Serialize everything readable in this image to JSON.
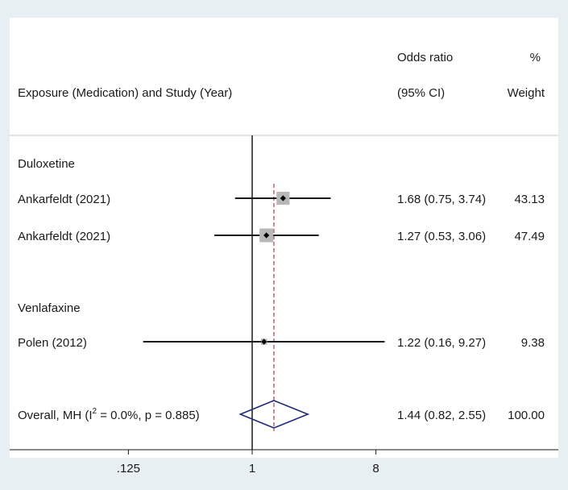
{
  "chart_data": {
    "type": "forest",
    "header": {
      "col1": "Exposure (Medication) and Study (Year)",
      "col2_line1": "Odds ratio",
      "col2_line2": "(95% CI)",
      "col3_line1": "%",
      "col3_line2": "Weight"
    },
    "groups": [
      {
        "name": "Duloxetine",
        "studies": [
          {
            "label": "Ankarfeldt (2021)",
            "or": 1.68,
            "lo": 0.75,
            "hi": 3.74,
            "ci_text": "1.68 (0.75, 3.74)",
            "weight": "43.13",
            "weight_value": 43.13
          },
          {
            "label": "Ankarfeldt (2021)",
            "or": 1.27,
            "lo": 0.53,
            "hi": 3.06,
            "ci_text": "1.27 (0.53, 3.06)",
            "weight": "47.49",
            "weight_value": 47.49
          }
        ]
      },
      {
        "name": "Venlafaxine",
        "studies": [
          {
            "label": "Polen (2012)",
            "or": 1.22,
            "lo": 0.16,
            "hi": 9.27,
            "ci_text": "1.22 (0.16, 9.27)",
            "weight": "9.38",
            "weight_value": 9.38
          }
        ]
      }
    ],
    "overall": {
      "label_prefix": "Overall, MH (I",
      "label_sup": "2",
      "label_suffix": " = 0.0%, p = 0.885)",
      "or": 1.44,
      "lo": 0.82,
      "hi": 2.55,
      "ci_text": "1.44 (0.82, 2.55)",
      "weight": "100.00"
    },
    "x_axis": {
      "scale": "log",
      "ticks": [
        {
          "value": 0.125,
          "label": ".125"
        },
        {
          "value": 1,
          "label": "1"
        },
        {
          "value": 8,
          "label": "8"
        }
      ],
      "null_line": 1
    },
    "colors": {
      "square": "#b8b8b8",
      "diamond": "#1f2a7a",
      "overall_line": "#b04040",
      "frame": "#e8eff3"
    }
  }
}
